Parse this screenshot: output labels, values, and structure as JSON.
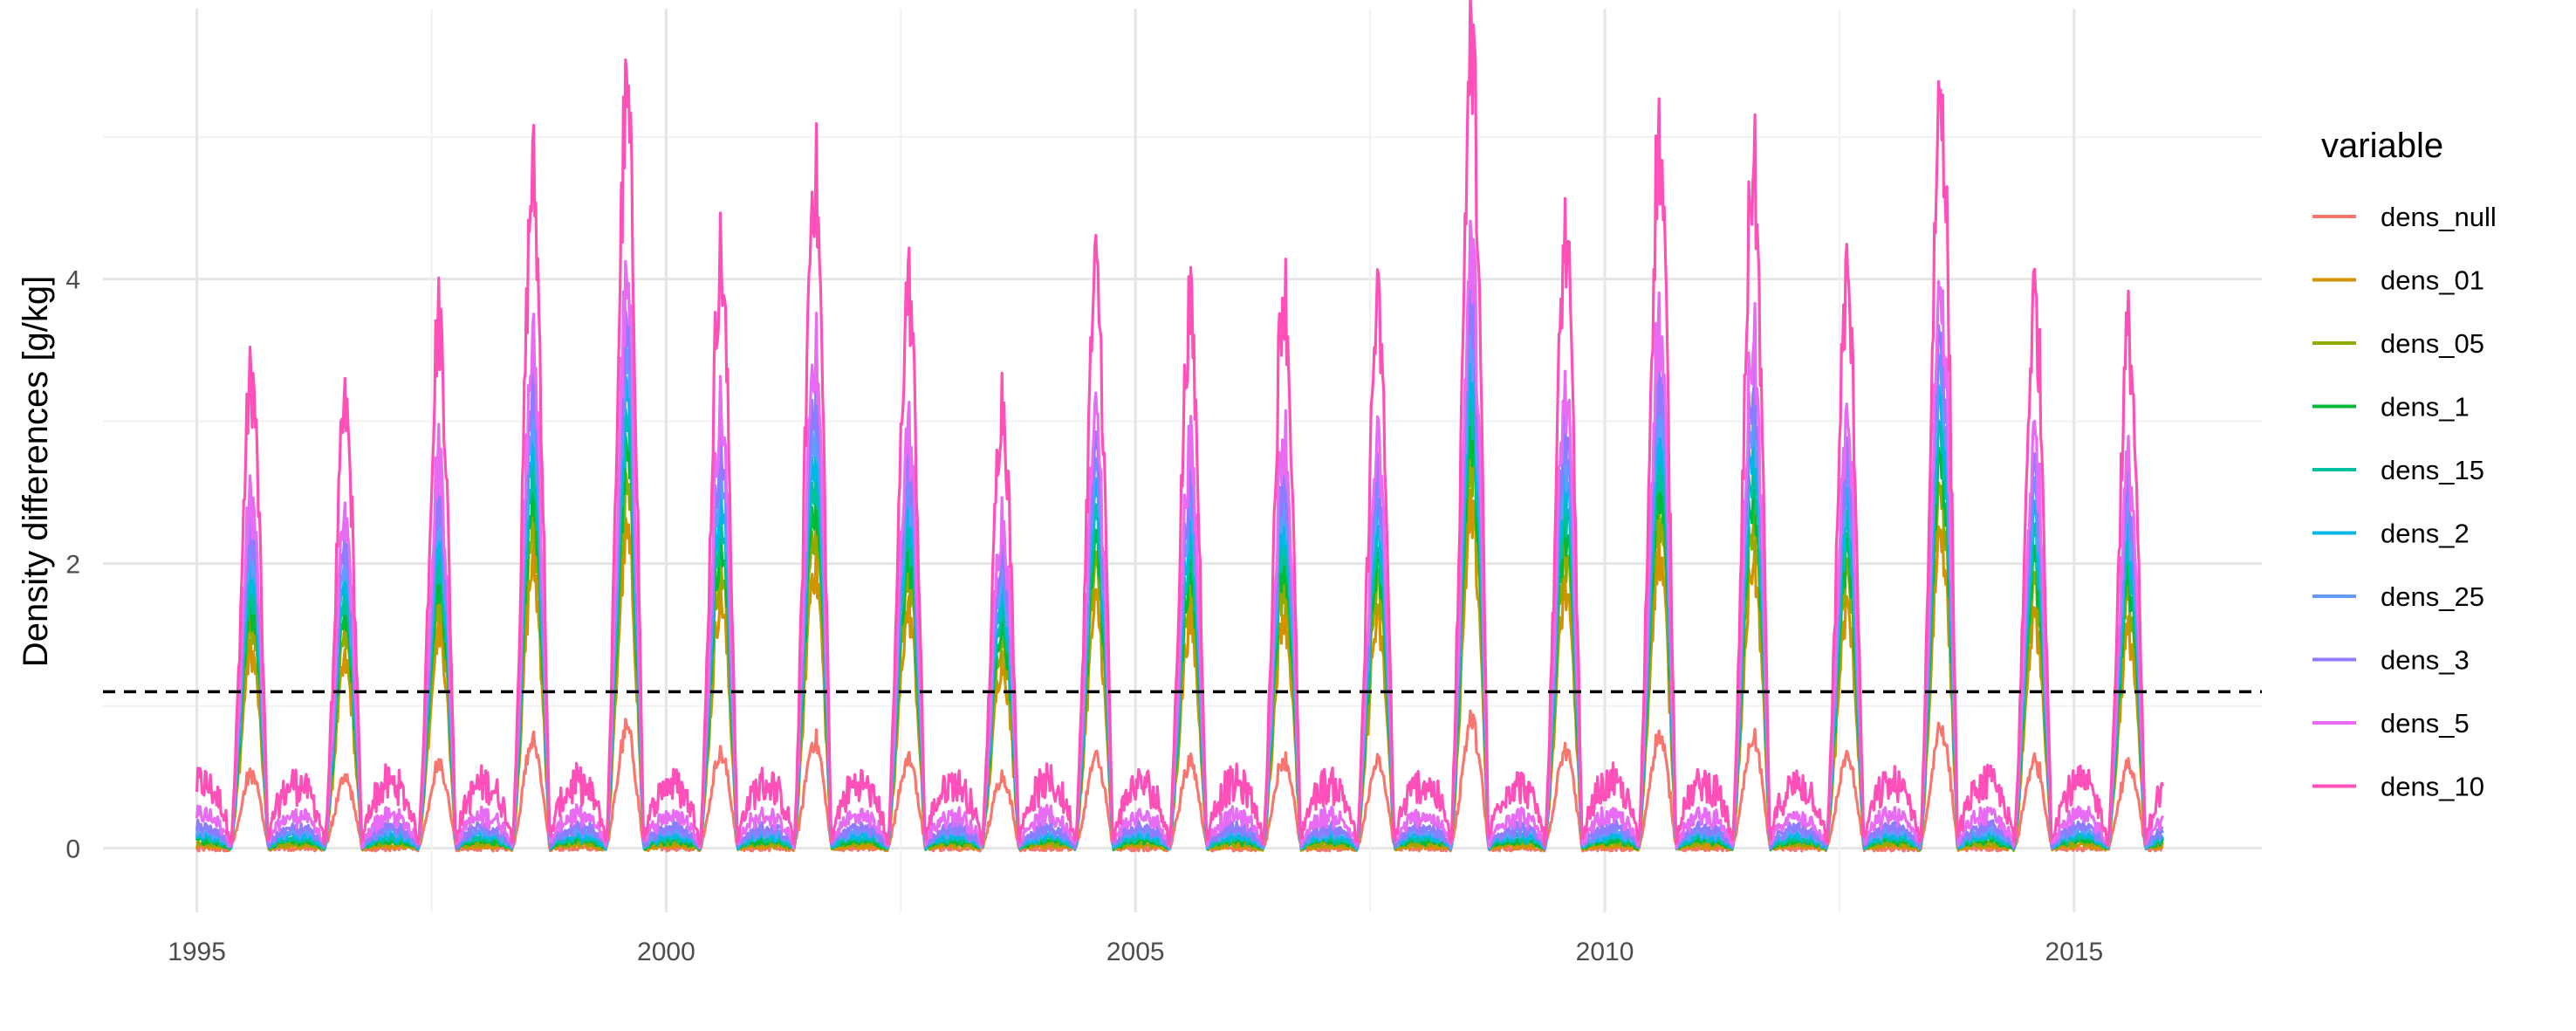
{
  "chart_data": {
    "type": "line",
    "title": "",
    "xlabel": "",
    "ylabel": "Density differences [g/kg]",
    "x_range": [
      1994.0,
      2017.0
    ],
    "y_range": [
      -0.45,
      5.9
    ],
    "x_ticks": [
      1995,
      2000,
      2005,
      2010,
      2015
    ],
    "x_tick_labels": [
      "1995",
      "2000",
      "2005",
      "2010",
      "2015"
    ],
    "y_ticks": [
      0,
      2,
      4
    ],
    "y_tick_labels": [
      "0",
      "2",
      "4"
    ],
    "grid": true,
    "reference_line": {
      "y": 1.1,
      "style": "dashed",
      "color": "#000000"
    },
    "legend": {
      "title": "variable",
      "placement": "right"
    },
    "series_scale": [
      0.16,
      0.42,
      0.48,
      0.52,
      0.56,
      0.6,
      0.64,
      0.68,
      0.74,
      0.86
    ],
    "series_baseline": [
      0.0,
      0.02,
      0.04,
      0.06,
      0.08,
      0.1,
      0.13,
      0.16,
      0.25,
      0.5
    ],
    "annual_peaks": [
      {
        "year": 1995,
        "peak": 3.3
      },
      {
        "year": 1996,
        "peak": 3.05
      },
      {
        "year": 1997,
        "peak": 3.7
      },
      {
        "year": 1998,
        "peak": 4.7
      },
      {
        "year": 1999,
        "peak": 5.2
      },
      {
        "year": 2000,
        "peak": 4.15
      },
      {
        "year": 2001,
        "peak": 4.75
      },
      {
        "year": 2002,
        "peak": 3.95
      },
      {
        "year": 2003,
        "peak": 3.15
      },
      {
        "year": 2004,
        "peak": 4.0
      },
      {
        "year": 2005,
        "peak": 3.75
      },
      {
        "year": 2006,
        "peak": 3.95
      },
      {
        "year": 2007,
        "peak": 3.75
      },
      {
        "year": 2008,
        "peak": 5.6
      },
      {
        "year": 2009,
        "peak": 4.25
      },
      {
        "year": 2010,
        "peak": 4.95
      },
      {
        "year": 2011,
        "peak": 4.8
      },
      {
        "year": 2012,
        "peak": 3.95
      },
      {
        "year": 2013,
        "peak": 5.35
      },
      {
        "year": 2014,
        "peak": 3.85
      },
      {
        "year": 2015,
        "peak": 3.6
      }
    ],
    "series": [
      {
        "name": "dens_null",
        "color": "#F8766D"
      },
      {
        "name": "dens_01",
        "color": "#D39200"
      },
      {
        "name": "dens_05",
        "color": "#93AA00"
      },
      {
        "name": "dens_1",
        "color": "#00BA38"
      },
      {
        "name": "dens_15",
        "color": "#00C19F"
      },
      {
        "name": "dens_2",
        "color": "#00B9E3"
      },
      {
        "name": "dens_25",
        "color": "#619CFF"
      },
      {
        "name": "dens_3",
        "color": "#8E7CFF"
      },
      {
        "name": "dens_5",
        "color": "#E76BF3"
      },
      {
        "name": "dens_10",
        "color": "#FF4FB8"
      }
    ]
  }
}
